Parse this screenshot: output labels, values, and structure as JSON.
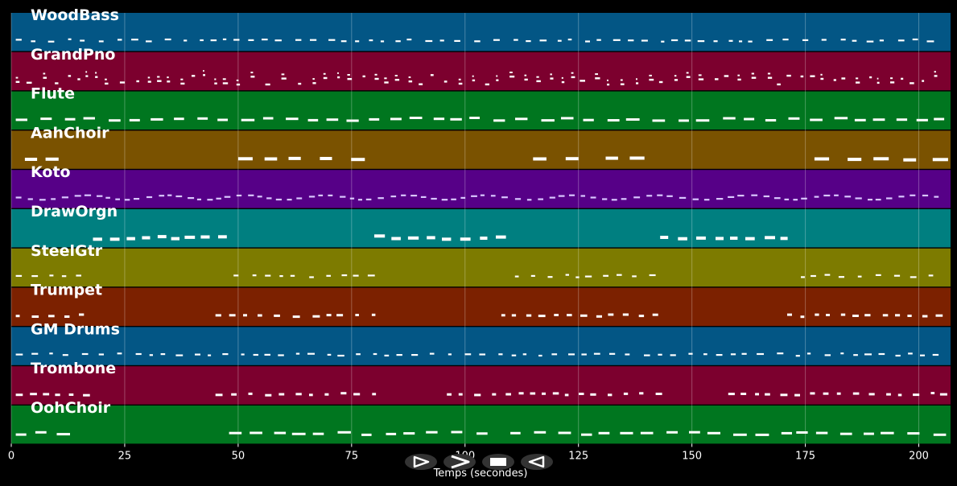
{
  "chart_data": {
    "type": "piano-roll",
    "xlabel": "Temps (secondes)",
    "xlim": [
      0,
      207
    ],
    "x_ticks": [
      0,
      25,
      50,
      75,
      100,
      125,
      150,
      175,
      200
    ],
    "grid": true,
    "tracks": [
      {
        "name": "WoodBass",
        "color": "#035685",
        "pattern": "dense",
        "segments": [
          [
            1,
            205
          ]
        ]
      },
      {
        "name": "GrandPno",
        "color": "#7c002e",
        "pattern": "chords",
        "segments": [
          [
            1,
            205
          ]
        ]
      },
      {
        "name": "Flute",
        "color": "#00761f",
        "pattern": "long",
        "segments": [
          [
            1,
            205
          ]
        ]
      },
      {
        "name": "AahChoir",
        "color": "#7a5200",
        "pattern": "sparse",
        "segments": [
          [
            3,
            11
          ],
          [
            50,
            65
          ],
          [
            68,
            79
          ],
          [
            115,
            128
          ],
          [
            131,
            143
          ],
          [
            177,
            187
          ],
          [
            190,
            204
          ]
        ]
      },
      {
        "name": "Koto",
        "color": "#560087",
        "pattern": "wavy",
        "segments": [
          [
            1,
            204
          ]
        ]
      },
      {
        "name": "DrawOrgn",
        "color": "#007f80",
        "pattern": "legato",
        "segments": [
          [
            18,
            47
          ],
          [
            80,
            109
          ],
          [
            143,
            173
          ]
        ]
      },
      {
        "name": "SteelGtr",
        "color": "#7d7b00",
        "pattern": "dense",
        "segments": [
          [
            1,
            16
          ],
          [
            49,
            80
          ],
          [
            111,
            143
          ],
          [
            174,
            205
          ]
        ]
      },
      {
        "name": "Trumpet",
        "color": "#7c2100",
        "pattern": "staccato",
        "segments": [
          [
            1,
            16
          ],
          [
            45,
            80
          ],
          [
            108,
            143
          ],
          [
            171,
            205
          ]
        ]
      },
      {
        "name": "GM Drums",
        "color": "#035685",
        "pattern": "dense",
        "segments": [
          [
            1,
            205
          ]
        ]
      },
      {
        "name": "Trombone",
        "color": "#7c002e",
        "pattern": "staccato",
        "segments": [
          [
            1,
            17
          ],
          [
            45,
            80
          ],
          [
            96,
            143
          ],
          [
            158,
            205
          ]
        ]
      },
      {
        "name": "OohChoir",
        "color": "#00761f",
        "pattern": "long",
        "segments": [
          [
            1,
            13
          ],
          [
            48,
            108
          ],
          [
            110,
            170
          ],
          [
            173,
            205
          ]
        ]
      }
    ]
  },
  "controls": {
    "play_icon": "play-icon",
    "fast_forward_icon": "fast-forward-icon",
    "stop_icon": "stop-icon",
    "rewind_icon": "rewind-icon"
  }
}
